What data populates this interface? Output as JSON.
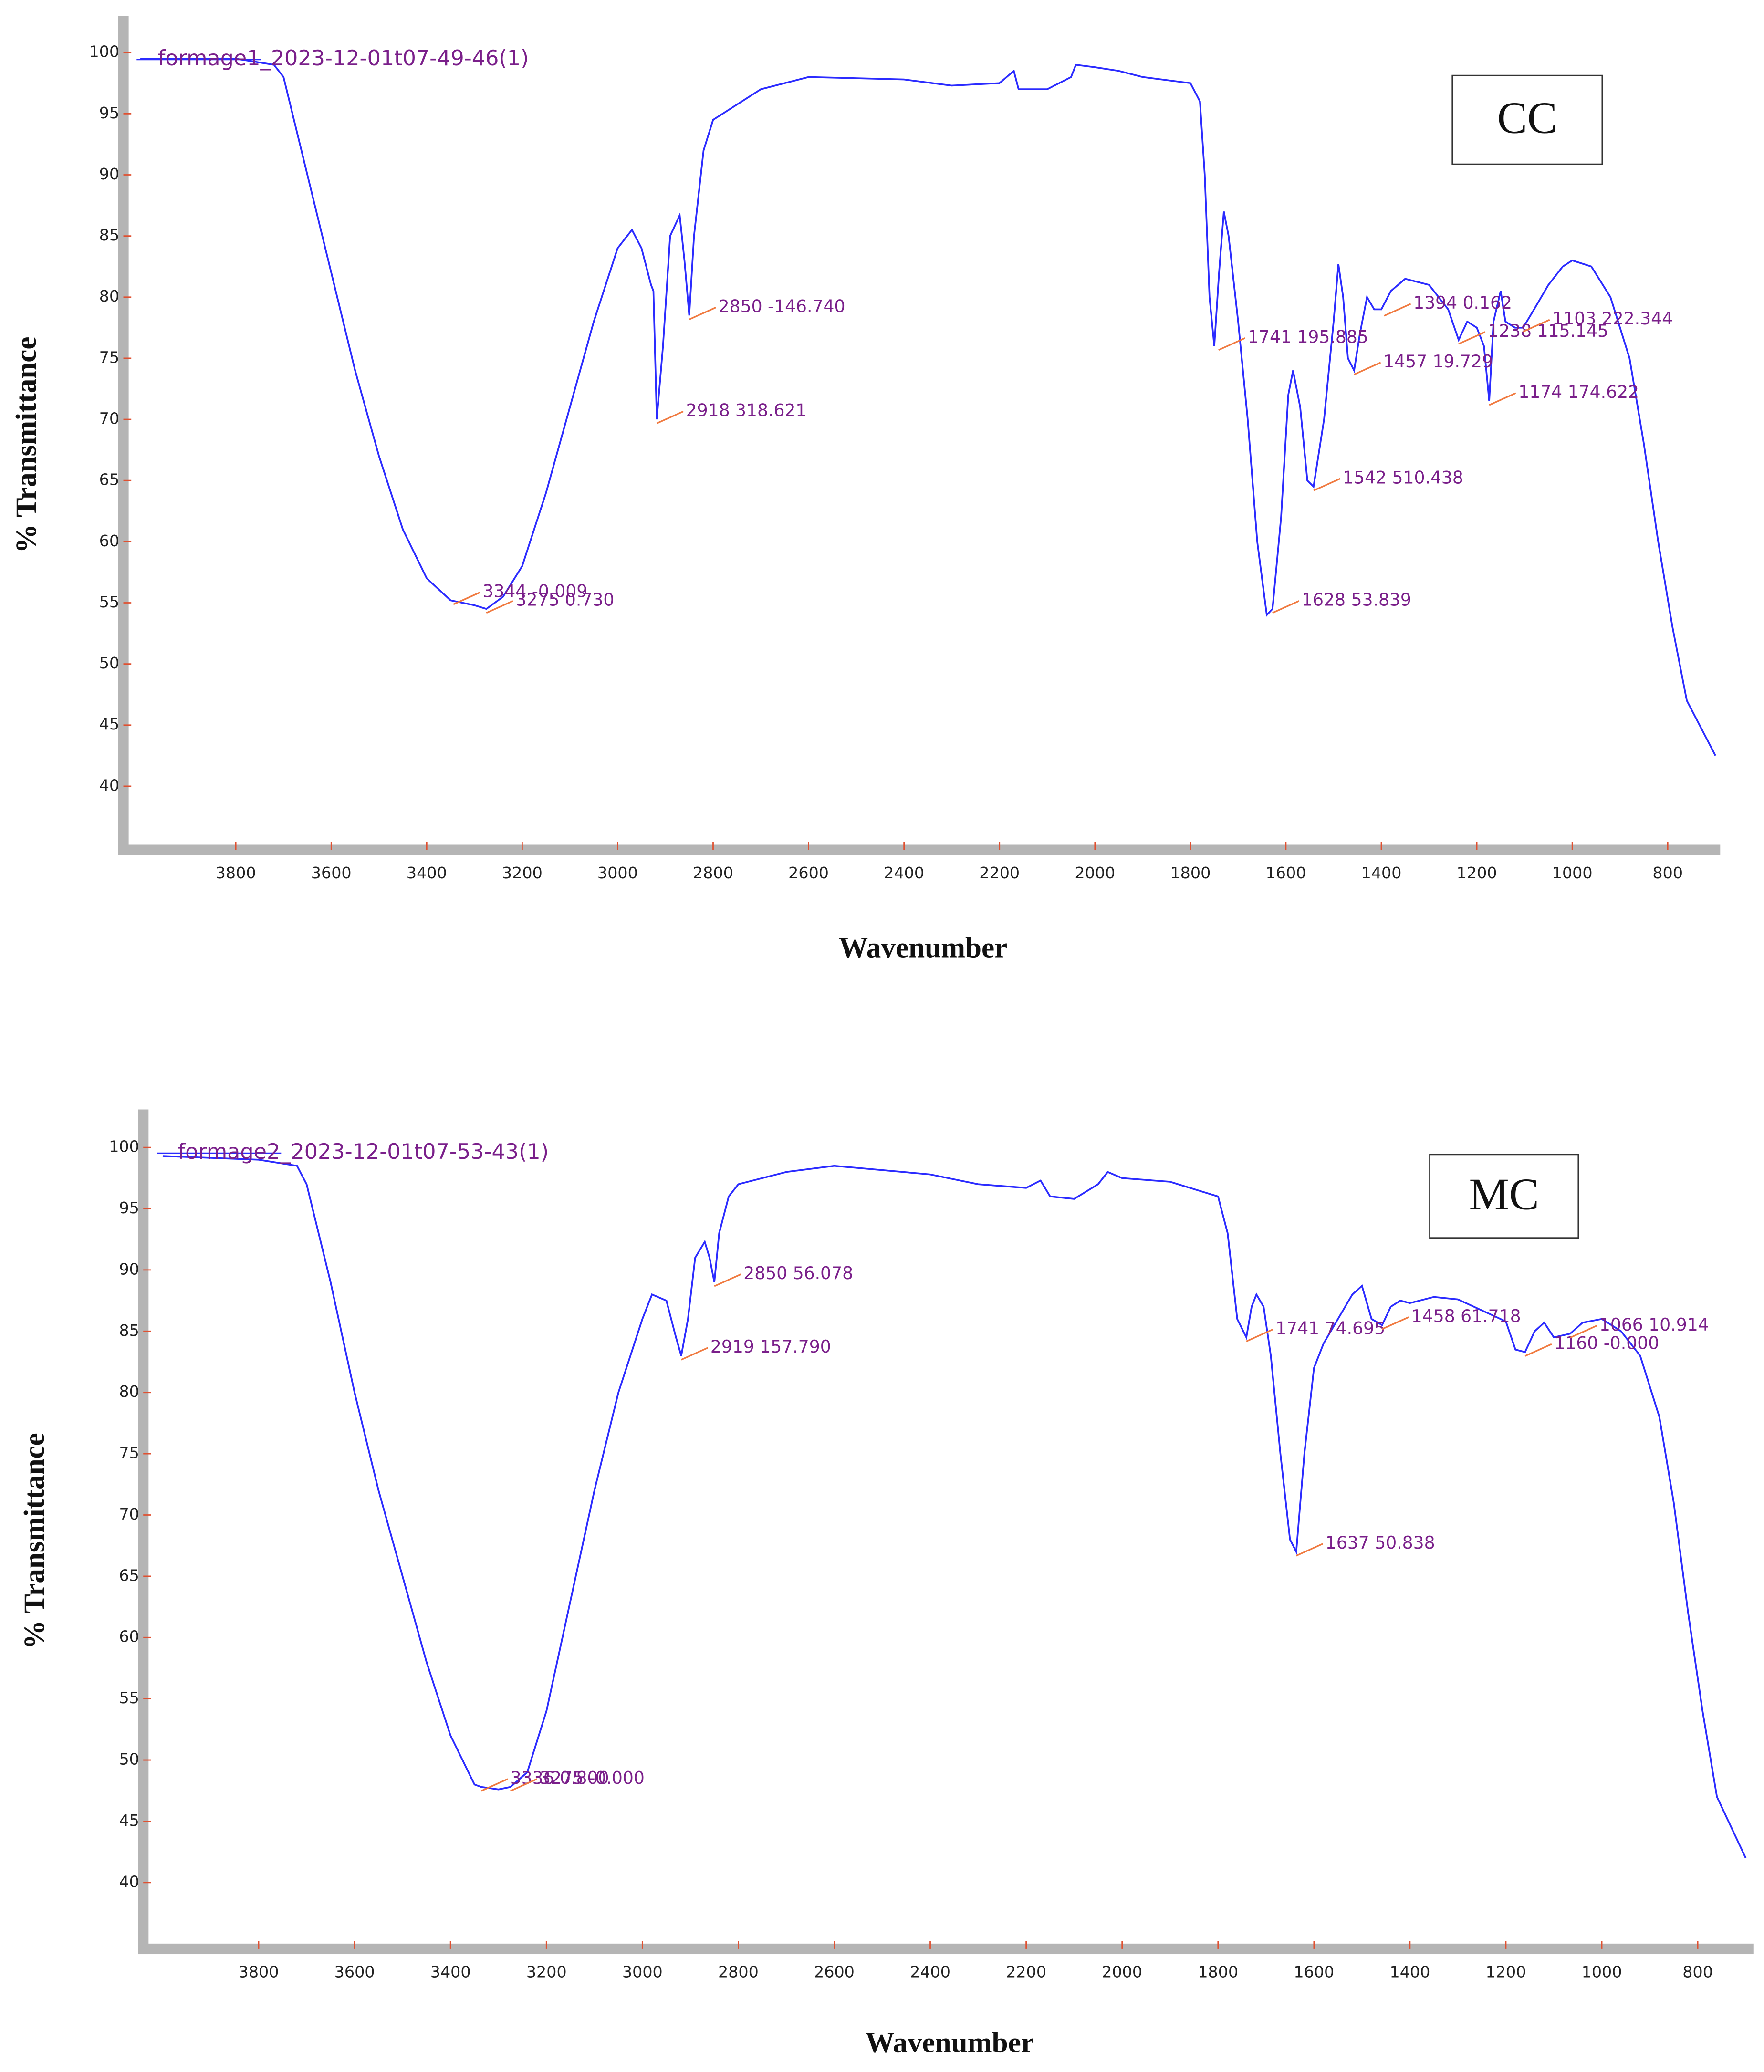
{
  "chart_data": [
    {
      "type": "line",
      "xlabel": "Wavenumber",
      "ylabel": "% Transmittance",
      "panel_label": "CC",
      "xlim": [
        4030,
        690
      ],
      "ylim": [
        35,
        103
      ],
      "xticks": [
        3800,
        3600,
        3400,
        3200,
        3000,
        2800,
        2600,
        2400,
        2200,
        2000,
        1800,
        1600,
        1400,
        1200,
        1000,
        800
      ],
      "yticks": [
        40,
        45,
        50,
        55,
        60,
        65,
        70,
        75,
        80,
        85,
        90,
        95,
        100
      ],
      "x": [
        4000,
        3800,
        3720,
        3700,
        3650,
        3600,
        3550,
        3500,
        3450,
        3400,
        3350,
        3300,
        3275,
        3240,
        3200,
        3150,
        3100,
        3050,
        3000,
        2970,
        2950,
        2930,
        2925,
        2918,
        2905,
        2890,
        2870,
        2860,
        2850,
        2840,
        2820,
        2800,
        2700,
        2600,
        2400,
        2300,
        2200,
        2170,
        2160,
        2100,
        2050,
        2040,
        2000,
        1950,
        1900,
        1800,
        1780,
        1770,
        1760,
        1750,
        1740,
        1730,
        1720,
        1700,
        1680,
        1660,
        1640,
        1628,
        1610,
        1595,
        1585,
        1570,
        1555,
        1542,
        1520,
        1500,
        1490,
        1480,
        1470,
        1457,
        1445,
        1430,
        1415,
        1400,
        1380,
        1350,
        1300,
        1260,
        1238,
        1220,
        1200,
        1185,
        1174,
        1165,
        1150,
        1140,
        1120,
        1103,
        1080,
        1050,
        1020,
        1000,
        960,
        920,
        880,
        850,
        820,
        790,
        760,
        700
      ],
      "series": [
        {
          "name": "formage1_2023-12-01t07-49-46(1)",
          "color": "#2b2bff",
          "values": [
            99.5,
            99.5,
            99,
            98,
            90,
            82,
            74,
            67,
            61,
            57,
            55.2,
            54.8,
            54.5,
            55.5,
            58,
            64,
            71,
            78,
            84,
            85.5,
            84,
            81,
            80.5,
            70,
            76,
            85,
            86.7,
            83,
            78.5,
            85,
            92,
            94.5,
            97,
            98,
            97.8,
            97.3,
            97.5,
            98.5,
            97,
            97,
            98,
            99,
            98.8,
            98.5,
            98,
            97.5,
            96,
            90,
            80,
            76,
            82,
            87,
            85,
            78,
            70,
            60,
            54,
            54.5,
            62,
            72,
            74,
            71,
            65,
            64.5,
            70,
            78,
            82.7,
            80,
            75,
            74,
            77,
            80,
            79,
            79,
            80.5,
            81.5,
            81,
            79,
            76.5,
            78,
            77.5,
            76,
            71.5,
            78,
            80.5,
            78,
            77.5,
            77.5,
            79,
            81,
            82.5,
            83,
            82.5,
            80,
            75,
            68,
            60,
            53,
            47,
            42.5
          ]
        }
      ],
      "annotations": [
        {
          "x": 3344,
          "y": 55.2,
          "label": "3344  -0.009"
        },
        {
          "x": 3275,
          "y": 54.5,
          "label": "3275  0.730"
        },
        {
          "x": 2918,
          "y": 70,
          "label": "2918  318.621"
        },
        {
          "x": 2850,
          "y": 78.5,
          "label": "2850  -146.740"
        },
        {
          "x": 1741,
          "y": 76,
          "label": "1741  195.885"
        },
        {
          "x": 1628,
          "y": 54.5,
          "label": "1628  53.839"
        },
        {
          "x": 1542,
          "y": 64.5,
          "label": "1542  510.438"
        },
        {
          "x": 1457,
          "y": 74,
          "label": "1457  19.729"
        },
        {
          "x": 1394,
          "y": 78.8,
          "label": "1394  0.162"
        },
        {
          "x": 1238,
          "y": 76.5,
          "label": "1238  115.145"
        },
        {
          "x": 1174,
          "y": 71.5,
          "label": "1174  174.622"
        },
        {
          "x": 1103,
          "y": 77.5,
          "label": "1103  222.344"
        }
      ]
    },
    {
      "type": "line",
      "xlabel": "Wavenumber",
      "ylabel": "% Transmittance",
      "panel_label": "MC",
      "xlim": [
        4035,
        684
      ],
      "ylim": [
        34.8,
        103.1
      ],
      "xticks": [
        3800,
        3600,
        3400,
        3200,
        3000,
        2800,
        2600,
        2400,
        2200,
        2000,
        1800,
        1600,
        1400,
        1200,
        1000,
        800
      ],
      "yticks": [
        40,
        45,
        50,
        55,
        60,
        65,
        70,
        75,
        80,
        85,
        90,
        95,
        100
      ],
      "x": [
        4000,
        3800,
        3720,
        3700,
        3650,
        3600,
        3550,
        3500,
        3450,
        3400,
        3350,
        3336,
        3300,
        3275,
        3240,
        3200,
        3150,
        3100,
        3050,
        3000,
        2980,
        2950,
        2930,
        2919,
        2905,
        2890,
        2870,
        2860,
        2850,
        2840,
        2820,
        2800,
        2700,
        2600,
        2400,
        2300,
        2200,
        2170,
        2150,
        2100,
        2050,
        2030,
        2000,
        1900,
        1800,
        1780,
        1760,
        1741,
        1730,
        1720,
        1705,
        1690,
        1670,
        1650,
        1637,
        1620,
        1600,
        1580,
        1550,
        1520,
        1500,
        1480,
        1458,
        1440,
        1420,
        1400,
        1350,
        1300,
        1250,
        1200,
        1180,
        1160,
        1140,
        1120,
        1100,
        1066,
        1040,
        1000,
        960,
        920,
        880,
        850,
        820,
        790,
        760,
        700
      ],
      "series": [
        {
          "name": "formage2_2023-12-01t07-53-43(1)",
          "color": "#2b2bff",
          "values": [
            99.3,
            99,
            98.5,
            97,
            89,
            80,
            72,
            65,
            58,
            52,
            48,
            47.8,
            47.6,
            47.8,
            49,
            54,
            63,
            72,
            80,
            86,
            88,
            87.5,
            84.5,
            83,
            86,
            91,
            92.3,
            91,
            89,
            93,
            96,
            97,
            98,
            98.5,
            97.8,
            97,
            96.7,
            97.3,
            96,
            95.8,
            97,
            98,
            97.5,
            97.2,
            96,
            93,
            86,
            84.5,
            87,
            88,
            87,
            83,
            75,
            68,
            67,
            75,
            82,
            84,
            86,
            88,
            88.7,
            86,
            85.5,
            87,
            87.5,
            87.3,
            87.8,
            87.6,
            86.7,
            85.8,
            83.5,
            83.3,
            85,
            85.7,
            84.5,
            84.8,
            85.7,
            86,
            85,
            83,
            78,
            71,
            62,
            54,
            47,
            42
          ]
        }
      ],
      "annotations": [
        {
          "x": 3336,
          "y": 47.8,
          "label": "3336  0.800"
        },
        {
          "x": 3275,
          "y": 47.8,
          "label": "3275  -0.000"
        },
        {
          "x": 2919,
          "y": 83,
          "label": "2919  157.790"
        },
        {
          "x": 2850,
          "y": 89,
          "label": "2850  56.078"
        },
        {
          "x": 1741,
          "y": 84.5,
          "label": "1741  74.695"
        },
        {
          "x": 1637,
          "y": 67,
          "label": "1637  50.838"
        },
        {
          "x": 1458,
          "y": 85.5,
          "label": "1458  61.718"
        },
        {
          "x": 1160,
          "y": 83.3,
          "label": "1160  -0.000"
        },
        {
          "x": 1066,
          "y": 84.8,
          "label": "1066  10.914"
        }
      ]
    }
  ]
}
